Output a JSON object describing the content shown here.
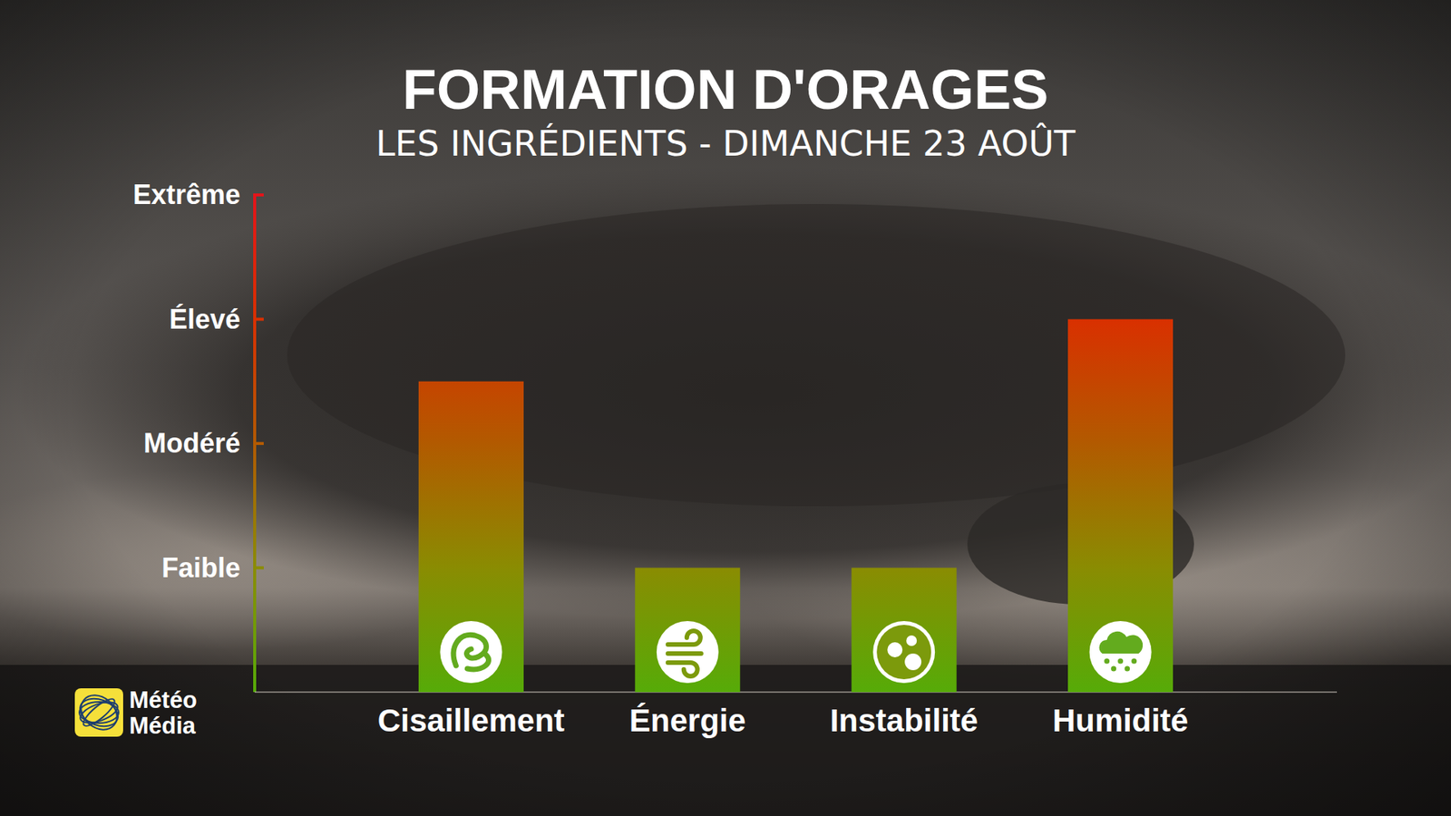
{
  "chart_data": {
    "type": "bar",
    "title": "FORMATION D'ORAGES",
    "subtitle": "LES INGRÉDIENTS - DIMANCHE 23 AOÛT",
    "categories": [
      "Cisaillement",
      "Énergie",
      "Instabilité",
      "Humidité"
    ],
    "values": [
      2.5,
      1,
      1,
      3
    ],
    "ylim": [
      0,
      4
    ],
    "yticks": [
      {
        "value": 1,
        "label": "Faible"
      },
      {
        "value": 2,
        "label": "Modéré"
      },
      {
        "value": 3,
        "label": "Élevé"
      },
      {
        "value": 4,
        "label": "Extrême"
      }
    ],
    "grid": false,
    "logo": [
      "Météo",
      "Média"
    ]
  }
}
